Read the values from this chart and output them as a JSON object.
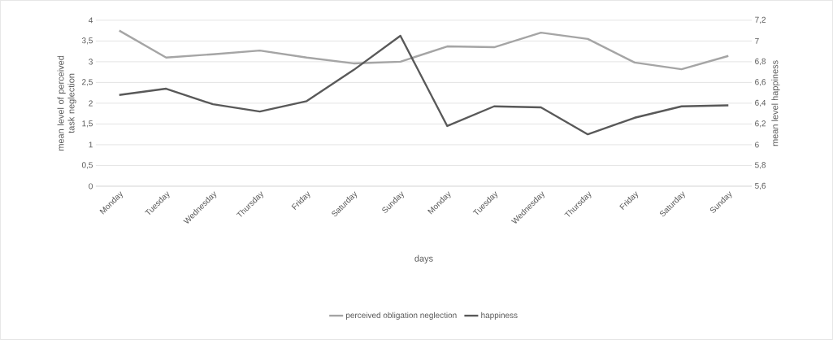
{
  "chart_data": {
    "type": "line",
    "xlabel": "days",
    "ylabel": "mean level of perceived task neglection",
    "y2label": "mean level happiness",
    "categories": [
      "Monday",
      "Tuesday",
      "Wednesday",
      "Thursday",
      "Friday",
      "Saturday",
      "Sunday",
      "Monday",
      "Tuesday",
      "Wednesday",
      "Thursday",
      "Friday",
      "Saturday",
      "Sunday"
    ],
    "series": [
      {
        "name": "perceived obligation neglection",
        "color": "#a5a5a5",
        "values": [
          3.75,
          3.1,
          3.18,
          3.27,
          3.1,
          2.96,
          3.0,
          3.37,
          3.35,
          3.7,
          3.55,
          2.98,
          2.82,
          3.14
        ]
      },
      {
        "name": "happiness",
        "color": "#595959",
        "axis": "y2",
        "values": [
          6.48,
          6.54,
          6.39,
          6.32,
          6.42,
          6.72,
          7.05,
          6.18,
          6.37,
          6.36,
          6.1,
          6.26,
          6.37,
          6.38
        ]
      }
    ],
    "ylim": [
      0,
      4
    ],
    "yticks": [
      0,
      {
        "value": 0.5,
        "label": "0,5"
      },
      1,
      {
        "value": 1.5,
        "label": "1,5"
      },
      2,
      {
        "value": 2.5,
        "label": "2,5"
      },
      3,
      {
        "value": 3.5,
        "label": "3,5"
      },
      4
    ],
    "y2lim": [
      5.6,
      7.2
    ],
    "y2ticks": [
      {
        "value": 5.6,
        "label": "5,6"
      },
      {
        "value": 5.8,
        "label": "5,8"
      },
      6,
      {
        "value": 6.2,
        "label": "6,2"
      },
      {
        "value": 6.4,
        "label": "6,4"
      },
      {
        "value": 6.6,
        "label": "6,6"
      },
      {
        "value": 6.8,
        "label": "6,8"
      },
      7,
      {
        "value": 7.2,
        "label": "7,2"
      }
    ],
    "grid": "y",
    "legend": "bottom",
    "marker": "none",
    "line_style": "solid"
  }
}
